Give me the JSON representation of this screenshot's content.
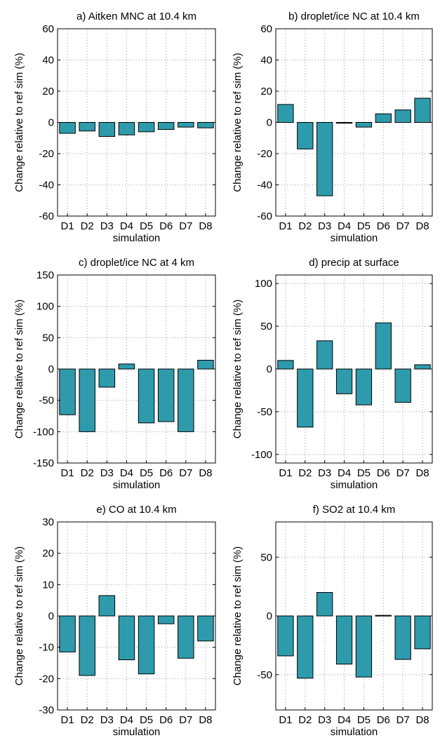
{
  "chart_data": [
    {
      "panel": "a",
      "type": "bar",
      "title": "a) Aitken MNC at 10.4 km",
      "xlabel": "simulation",
      "ylabel": "Change relative to ref sim (%)",
      "categories": [
        "D1",
        "D2",
        "D3",
        "D4",
        "D5",
        "D6",
        "D7",
        "D8"
      ],
      "values": [
        -7,
        -5.5,
        -9,
        -8,
        -6,
        -4.5,
        -3,
        -3.5
      ],
      "ylim": [
        -60,
        60
      ],
      "yticks": [
        -60,
        -40,
        -20,
        0,
        20,
        40,
        60
      ],
      "grid": true,
      "bar_color": "#2e9bad"
    },
    {
      "panel": "b",
      "type": "bar",
      "title": "b) droplet/ice NC at 10.4 km",
      "xlabel": "simulation",
      "ylabel": "Change relative to ref sim (%)",
      "categories": [
        "D1",
        "D2",
        "D3",
        "D4",
        "D5",
        "D6",
        "D7",
        "D8"
      ],
      "values": [
        11.5,
        -17,
        -47,
        -0.5,
        -3,
        5.5,
        8,
        15.5
      ],
      "ylim": [
        -60,
        60
      ],
      "yticks": [
        -60,
        -40,
        -20,
        0,
        20,
        40,
        60
      ],
      "grid": true,
      "bar_color": "#2e9bad"
    },
    {
      "panel": "c",
      "type": "bar",
      "title": "c) droplet/ice NC at 4 km",
      "xlabel": "simulation",
      "ylabel": "Change relative to ref sim (%)",
      "categories": [
        "D1",
        "D2",
        "D3",
        "D4",
        "D5",
        "D6",
        "D7",
        "D8"
      ],
      "values": [
        -73,
        -100,
        -29,
        8,
        -86,
        -84,
        -100,
        14
      ],
      "ylim": [
        -150,
        150
      ],
      "yticks": [
        -150,
        -100,
        -50,
        0,
        50,
        100,
        150
      ],
      "grid": true,
      "bar_color": "#2e9bad"
    },
    {
      "panel": "d",
      "type": "bar",
      "title": "d) precip at surface",
      "xlabel": "simulation",
      "ylabel": "Change relative to ref sim (%)",
      "categories": [
        "D1",
        "D2",
        "D3",
        "D4",
        "D5",
        "D6",
        "D7",
        "D8"
      ],
      "values": [
        10,
        -68,
        33,
        -29,
        -42,
        54,
        -39,
        5
      ],
      "ylim": [
        -110,
        110
      ],
      "yticks": [
        -100,
        -50,
        0,
        50,
        100
      ],
      "grid": true,
      "bar_color": "#2e9bad"
    },
    {
      "panel": "e",
      "type": "bar",
      "title": "e) CO at 10.4 km",
      "xlabel": "simulation",
      "ylabel": "Change relative to ref sim (%)",
      "categories": [
        "D1",
        "D2",
        "D3",
        "D4",
        "D5",
        "D6",
        "D7",
        "D8"
      ],
      "values": [
        -11.5,
        -19,
        6.5,
        -14,
        -18.5,
        -2.5,
        -13.5,
        -8
      ],
      "ylim": [
        -30,
        30
      ],
      "yticks": [
        -30,
        -20,
        -10,
        0,
        10,
        20,
        30
      ],
      "grid": true,
      "bar_color": "#2e9bad"
    },
    {
      "panel": "f",
      "type": "bar",
      "title": "f) SO2 at 10.4 km",
      "xlabel": "simulation",
      "ylabel": "Change relative to ref sim (%)",
      "categories": [
        "D1",
        "D2",
        "D3",
        "D4",
        "D5",
        "D6",
        "D7",
        "D8"
      ],
      "values": [
        -34,
        -53,
        20,
        -41,
        -52,
        0.5,
        -37,
        -28
      ],
      "ylim": [
        -80,
        80
      ],
      "yticks": [
        -50,
        0,
        50
      ],
      "grid": true,
      "bar_color": "#2e9bad"
    }
  ]
}
